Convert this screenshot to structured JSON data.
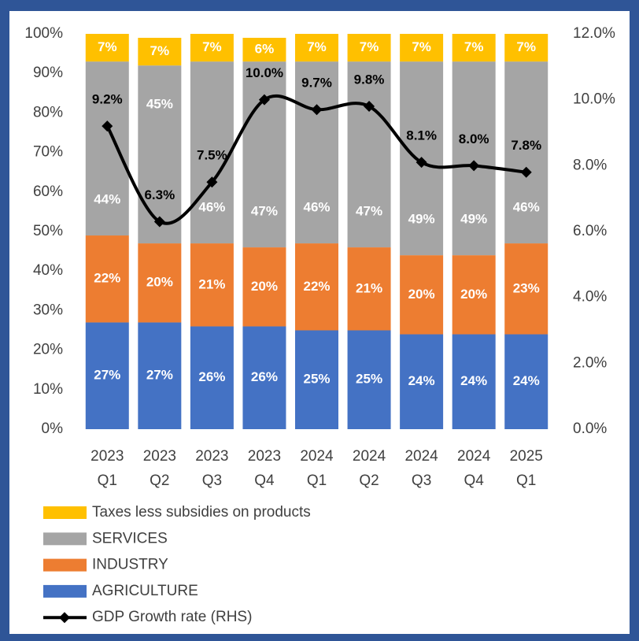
{
  "chart_data": {
    "type": "bar",
    "stacked": true,
    "categories": [
      [
        "2023",
        "Q1"
      ],
      [
        "2023",
        "Q2"
      ],
      [
        "2023",
        "Q3"
      ],
      [
        "2023",
        "Q4"
      ],
      [
        "2024",
        "Q1"
      ],
      [
        "2024",
        "Q2"
      ],
      [
        "2024",
        "Q3"
      ],
      [
        "2024",
        "Q4"
      ],
      [
        "2025",
        "Q1"
      ]
    ],
    "series": [
      {
        "name": "AGRICULTURE",
        "color": "#4472c4",
        "values": [
          27,
          27,
          26,
          26,
          25,
          25,
          24,
          24,
          24
        ],
        "value_labels": [
          "27%",
          "27%",
          "26%",
          "26%",
          "25%",
          "25%",
          "24%",
          "24%",
          "24%"
        ]
      },
      {
        "name": "INDUSTRY",
        "color": "#ed7d31",
        "values": [
          22,
          20,
          21,
          20,
          22,
          21,
          20,
          20,
          23
        ],
        "value_labels": [
          "22%",
          "20%",
          "21%",
          "20%",
          "22%",
          "21%",
          "20%",
          "20%",
          "23%"
        ]
      },
      {
        "name": "SERVICES",
        "color": "#a5a5a5",
        "values": [
          44,
          45,
          46,
          47,
          46,
          47,
          49,
          49,
          46
        ],
        "value_labels": [
          "44%",
          "45%",
          "46%",
          "47%",
          "46%",
          "47%",
          "49%",
          "49%",
          "46%"
        ]
      },
      {
        "name": "Taxes less subsidies on products",
        "color": "#ffc000",
        "values": [
          7,
          7,
          7,
          6,
          7,
          7,
          7,
          7,
          7
        ],
        "value_labels": [
          "7%",
          "7%",
          "7%",
          "6%",
          "7%",
          "7%",
          "7%",
          "7%",
          "7%"
        ]
      },
      {
        "name": "GDP Growth rate (RHS)",
        "type": "line",
        "axis": "y2",
        "color": "#000000",
        "values": [
          9.2,
          6.3,
          7.5,
          10.0,
          9.7,
          9.8,
          8.1,
          8.0,
          7.8
        ],
        "value_labels": [
          "9.2%",
          "6.3%",
          "7.5%",
          "10.0%",
          "9.7%",
          "9.8%",
          "8.1%",
          "8.0%",
          "7.8%"
        ]
      }
    ],
    "ylim": [
      0,
      100
    ],
    "yticks": [
      {
        "value": 0,
        "label": "0%"
      },
      {
        "value": 10,
        "label": "10%"
      },
      {
        "value": 20,
        "label": "20%"
      },
      {
        "value": 30,
        "label": "30%"
      },
      {
        "value": 40,
        "label": "40%"
      },
      {
        "value": 50,
        "label": "50%"
      },
      {
        "value": 60,
        "label": "60%"
      },
      {
        "value": 70,
        "label": "70%"
      },
      {
        "value": 80,
        "label": "80%"
      },
      {
        "value": 90,
        "label": "90%"
      },
      {
        "value": 100,
        "label": "100%"
      }
    ],
    "y2lim": [
      0,
      12
    ],
    "y2ticks": [
      {
        "value": 0,
        "label": "0.0%"
      },
      {
        "value": 2,
        "label": "2.0%"
      },
      {
        "value": 4,
        "label": "4.0%"
      },
      {
        "value": 6,
        "label": "6.0%"
      },
      {
        "value": 8,
        "label": "8.0%"
      },
      {
        "value": 10,
        "label": "10.0%"
      },
      {
        "value": 12,
        "label": "12.0%"
      }
    ],
    "legend": "bottom",
    "grid": false
  }
}
